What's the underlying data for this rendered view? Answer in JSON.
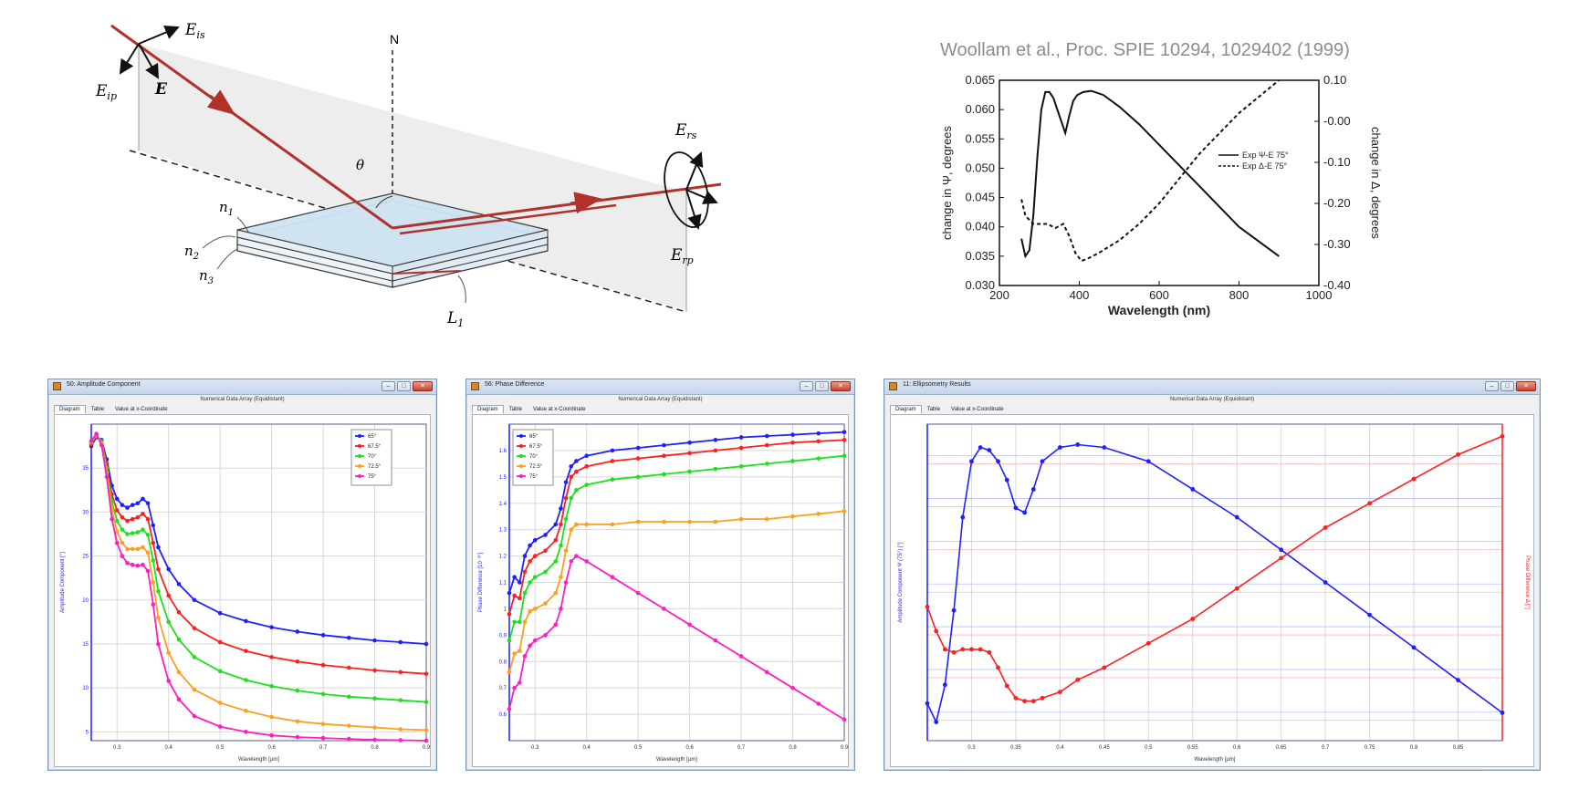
{
  "diagram": {
    "labels": {
      "normal": "N",
      "angle": "θ",
      "E_is": "E",
      "E_is_sub": "is",
      "E_ip": "E",
      "E_ip_sub": "ip",
      "E": "E",
      "E_rs": "E",
      "E_rs_sub": "rs",
      "E_rp": "E",
      "E_rp_sub": "rp",
      "n1": "n",
      "n1_sub": "1",
      "n2": "n",
      "n2_sub": "2",
      "n3": "n",
      "n3_sub": "3",
      "L1": "L",
      "L1_sub": "1"
    },
    "colors": {
      "beam": "#c0392b",
      "slab": "#cfe3f1"
    }
  },
  "reference_chart": {
    "citation": "Woollam et al., Proc. SPIE 10294, 1029402 (1999)",
    "chart_data": {
      "type": "line",
      "xlabel": "Wavelength (nm)",
      "ylabel_left": "change in Ψ, degrees",
      "ylabel_right": "change in Δ, degrees",
      "xlim": [
        200,
        1000
      ],
      "ylim_left": [
        0.03,
        0.065
      ],
      "ylim_right": [
        -0.4,
        0.1
      ],
      "x_ticks": [
        "200",
        "400",
        "600",
        "800",
        "1000"
      ],
      "y_left_ticks": [
        "0.030",
        "0.035",
        "0.040",
        "0.045",
        "0.050",
        "0.055",
        "0.060",
        "0.065"
      ],
      "y_right_ticks": [
        "-0.40",
        "-0.30",
        "-0.20",
        "-0.10",
        "-0.00",
        "0.10"
      ],
      "legend": [
        "Exp Ψ-E 75°",
        "Exp Δ-E 75°"
      ],
      "legend_position": "center-right",
      "series": [
        {
          "name": "Exp Ψ-E 75°",
          "axis": "left",
          "style": "solid",
          "x": [
            255,
            265,
            275,
            285,
            295,
            305,
            315,
            325,
            335,
            345,
            355,
            365,
            375,
            385,
            395,
            410,
            430,
            460,
            500,
            550,
            600,
            650,
            700,
            750,
            800,
            850,
            900
          ],
          "y": [
            0.038,
            0.035,
            0.036,
            0.042,
            0.052,
            0.06,
            0.063,
            0.063,
            0.062,
            0.06,
            0.058,
            0.056,
            0.059,
            0.0615,
            0.0625,
            0.063,
            0.0632,
            0.0625,
            0.0605,
            0.0575,
            0.054,
            0.0505,
            0.047,
            0.0435,
            0.04,
            0.0375,
            0.035
          ]
        },
        {
          "name": "Exp Δ-E 75°",
          "axis": "right",
          "style": "dashed",
          "x": [
            255,
            265,
            275,
            285,
            300,
            320,
            340,
            360,
            375,
            390,
            405,
            420,
            450,
            500,
            550,
            600,
            650,
            700,
            750,
            800,
            850,
            900
          ],
          "y": [
            -0.19,
            -0.23,
            -0.24,
            -0.25,
            -0.25,
            -0.25,
            -0.26,
            -0.25,
            -0.28,
            -0.32,
            -0.34,
            -0.335,
            -0.32,
            -0.29,
            -0.25,
            -0.2,
            -0.14,
            -0.08,
            -0.03,
            0.02,
            0.06,
            0.1
          ]
        }
      ]
    }
  },
  "windows": [
    {
      "title": "50: Amplitude Component",
      "subtitle": "Numerical Data Array (Equidistant)",
      "tabs": [
        "Diagram",
        "Table",
        "Value at x-Coordinate"
      ],
      "chart_data": {
        "type": "line",
        "xlabel": "Wavelength [µm]",
        "ylabel": "Amplitude Component [°]",
        "xlim": [
          0.25,
          0.9
        ],
        "x_ticks": [
          "0.3",
          "0.4",
          "0.5",
          "0.6",
          "0.7",
          "0.8",
          "0.9"
        ],
        "ylim": [
          4,
          40
        ],
        "y_ticks": [
          "5",
          "10",
          "15",
          "20",
          "25",
          "30",
          "35"
        ],
        "legend_position": "top-right",
        "series": [
          {
            "name": "65°",
            "color": "#1f1fff",
            "x": [
              0.25,
              0.26,
              0.27,
              0.28,
              0.29,
              0.3,
              0.31,
              0.32,
              0.33,
              0.34,
              0.35,
              0.36,
              0.37,
              0.38,
              0.4,
              0.42,
              0.45,
              0.5,
              0.55,
              0.6,
              0.65,
              0.7,
              0.75,
              0.8,
              0.85,
              0.9
            ],
            "y": [
              37.5,
              38.5,
              38.2,
              36.0,
              33.0,
              31.5,
              30.8,
              30.5,
              30.8,
              31.0,
              31.5,
              31.0,
              28.5,
              26.0,
              23.5,
              21.8,
              20.0,
              18.5,
              17.6,
              16.9,
              16.4,
              16.0,
              15.7,
              15.4,
              15.2,
              15.0
            ]
          },
          {
            "name": "67.5°",
            "color": "#ff1f1f",
            "x": [
              0.25,
              0.26,
              0.27,
              0.28,
              0.29,
              0.3,
              0.31,
              0.32,
              0.33,
              0.34,
              0.35,
              0.36,
              0.37,
              0.38,
              0.4,
              0.42,
              0.45,
              0.5,
              0.55,
              0.6,
              0.65,
              0.7,
              0.75,
              0.8,
              0.85,
              0.9
            ],
            "y": [
              37.7,
              38.6,
              38.1,
              35.5,
              32.0,
              30.2,
              29.4,
              29.0,
              29.2,
              29.4,
              29.8,
              29.2,
              26.5,
              23.5,
              20.5,
              18.6,
              16.8,
              15.2,
              14.2,
              13.5,
              13.0,
              12.6,
              12.3,
              12.0,
              11.8,
              11.6
            ]
          },
          {
            "name": "70°",
            "color": "#1fdf1f",
            "x": [
              0.25,
              0.26,
              0.27,
              0.28,
              0.29,
              0.3,
              0.31,
              0.32,
              0.33,
              0.34,
              0.35,
              0.36,
              0.37,
              0.38,
              0.4,
              0.42,
              0.45,
              0.5,
              0.55,
              0.6,
              0.65,
              0.7,
              0.75,
              0.8,
              0.85,
              0.9
            ],
            "y": [
              37.9,
              38.7,
              38.0,
              35.0,
              31.2,
              29.0,
              28.0,
              27.5,
              27.6,
              27.7,
              28.0,
              27.4,
              24.5,
              21.0,
              17.5,
              15.5,
              13.5,
              11.9,
              10.9,
              10.2,
              9.7,
              9.3,
              9.0,
              8.8,
              8.6,
              8.4
            ]
          },
          {
            "name": "72.5°",
            "color": "#ff9f1f",
            "x": [
              0.25,
              0.26,
              0.27,
              0.28,
              0.29,
              0.3,
              0.31,
              0.32,
              0.33,
              0.34,
              0.35,
              0.36,
              0.37,
              0.38,
              0.4,
              0.42,
              0.45,
              0.5,
              0.55,
              0.6,
              0.65,
              0.7,
              0.75,
              0.8,
              0.85,
              0.9
            ],
            "y": [
              38.0,
              38.8,
              37.8,
              34.5,
              30.2,
              27.8,
              26.5,
              25.8,
              25.8,
              25.8,
              26.0,
              25.4,
              22.0,
              18.0,
              14.0,
              11.8,
              9.8,
              8.3,
              7.4,
              6.7,
              6.2,
              5.9,
              5.7,
              5.5,
              5.3,
              5.2
            ]
          },
          {
            "name": "75°",
            "color": "#ff1fbf",
            "x": [
              0.25,
              0.26,
              0.27,
              0.28,
              0.29,
              0.3,
              0.31,
              0.32,
              0.33,
              0.34,
              0.35,
              0.36,
              0.37,
              0.38,
              0.4,
              0.42,
              0.45,
              0.5,
              0.55,
              0.6,
              0.65,
              0.7,
              0.75,
              0.8,
              0.85,
              0.9
            ],
            "y": [
              38.1,
              38.9,
              37.6,
              34.0,
              29.2,
              26.5,
              25.0,
              24.2,
              24.0,
              23.9,
              24.0,
              23.3,
              19.5,
              15.0,
              10.8,
              8.7,
              6.8,
              5.6,
              5.0,
              4.6,
              4.4,
              4.3,
              4.2,
              4.1,
              4.05,
              4.0
            ]
          }
        ]
      }
    },
    {
      "title": "56: Phase Difference",
      "subtitle": "Numerical Data Array (Equidistant)",
      "tabs": [
        "Diagram",
        "Table",
        "Value at x-Coordinate"
      ],
      "chart_data": {
        "type": "line",
        "xlabel": "Wavelength [µm]",
        "ylabel": "Phase Difference [10⁻³°]",
        "xlim": [
          0.25,
          0.9
        ],
        "x_ticks": [
          "0.3",
          "0.4",
          "0.5",
          "0.6",
          "0.7",
          "0.8",
          "0.9"
        ],
        "ylim": [
          0.5,
          1.7
        ],
        "y_ticks": [
          "0.6",
          "0.7",
          "0.8",
          "0.9",
          "1",
          "1.1",
          "1.2",
          "1.3",
          "1.4",
          "1.5",
          "1.6"
        ],
        "legend_position": "top-left",
        "series": [
          {
            "name": "65°",
            "color": "#1f1fff",
            "x": [
              0.25,
              0.26,
              0.27,
              0.28,
              0.29,
              0.3,
              0.32,
              0.34,
              0.35,
              0.36,
              0.37,
              0.38,
              0.4,
              0.45,
              0.5,
              0.55,
              0.6,
              0.65,
              0.7,
              0.75,
              0.8,
              0.85,
              0.9
            ],
            "y": [
              1.06,
              1.12,
              1.1,
              1.2,
              1.24,
              1.26,
              1.28,
              1.32,
              1.38,
              1.48,
              1.54,
              1.56,
              1.58,
              1.6,
              1.61,
              1.62,
              1.63,
              1.64,
              1.65,
              1.655,
              1.66,
              1.665,
              1.67
            ]
          },
          {
            "name": "67.5°",
            "color": "#ff1f1f",
            "x": [
              0.25,
              0.26,
              0.27,
              0.28,
              0.29,
              0.3,
              0.32,
              0.34,
              0.35,
              0.36,
              0.37,
              0.38,
              0.4,
              0.45,
              0.5,
              0.55,
              0.6,
              0.65,
              0.7,
              0.75,
              0.8,
              0.85,
              0.9
            ],
            "y": [
              0.98,
              1.05,
              1.04,
              1.14,
              1.18,
              1.2,
              1.22,
              1.26,
              1.32,
              1.42,
              1.5,
              1.52,
              1.54,
              1.56,
              1.57,
              1.58,
              1.59,
              1.6,
              1.61,
              1.62,
              1.63,
              1.635,
              1.64
            ]
          },
          {
            "name": "70°",
            "color": "#1fdf1f",
            "x": [
              0.25,
              0.26,
              0.27,
              0.28,
              0.29,
              0.3,
              0.32,
              0.34,
              0.35,
              0.36,
              0.37,
              0.38,
              0.4,
              0.45,
              0.5,
              0.55,
              0.6,
              0.65,
              0.7,
              0.75,
              0.8,
              0.85,
              0.9
            ],
            "y": [
              0.88,
              0.95,
              0.95,
              1.06,
              1.1,
              1.12,
              1.14,
              1.18,
              1.24,
              1.34,
              1.42,
              1.45,
              1.47,
              1.49,
              1.5,
              1.51,
              1.52,
              1.53,
              1.54,
              1.55,
              1.56,
              1.57,
              1.58
            ]
          },
          {
            "name": "72.5°",
            "color": "#ff9f1f",
            "x": [
              0.25,
              0.26,
              0.27,
              0.28,
              0.29,
              0.3,
              0.32,
              0.34,
              0.35,
              0.36,
              0.37,
              0.38,
              0.4,
              0.45,
              0.5,
              0.55,
              0.6,
              0.65,
              0.7,
              0.75,
              0.8,
              0.85,
              0.9
            ],
            "y": [
              0.76,
              0.83,
              0.84,
              0.95,
              0.99,
              1.0,
              1.02,
              1.06,
              1.12,
              1.22,
              1.3,
              1.32,
              1.32,
              1.32,
              1.33,
              1.33,
              1.33,
              1.33,
              1.34,
              1.34,
              1.35,
              1.36,
              1.37
            ]
          },
          {
            "name": "75°",
            "color": "#ff1fbf",
            "x": [
              0.25,
              0.26,
              0.27,
              0.28,
              0.29,
              0.3,
              0.32,
              0.34,
              0.35,
              0.36,
              0.37,
              0.38,
              0.4,
              0.45,
              0.5,
              0.55,
              0.6,
              0.65,
              0.7,
              0.75,
              0.8,
              0.85,
              0.9
            ],
            "y": [
              0.62,
              0.7,
              0.72,
              0.82,
              0.86,
              0.88,
              0.9,
              0.94,
              1.0,
              1.1,
              1.18,
              1.2,
              1.18,
              1.12,
              1.06,
              1.0,
              0.94,
              0.88,
              0.82,
              0.76,
              0.7,
              0.64,
              0.58
            ]
          }
        ]
      }
    },
    {
      "title": "11: Ellipsometry Results",
      "subtitle": "Numerical Data Array (Equidistant)",
      "tabs": [
        "Diagram",
        "Table",
        "Value at x-Coordinate"
      ],
      "chart_data": {
        "type": "line",
        "xlabel": "Wavelength [µm]",
        "ylabel_left": "Amplitude Component Ψ (75°) [°]",
        "ylabel_right": "Phase Difference Δ [°]",
        "xlim": [
          0.25,
          0.9
        ],
        "x_ticks": [
          "0.3",
          "0.35",
          "0.4",
          "0.45",
          "0.5",
          "0.55",
          "0.6",
          "0.65",
          "0.7",
          "0.75",
          "0.8",
          "0.85"
        ],
        "series": [
          {
            "name": "Ψ",
            "color": "#1f1fff",
            "axis": "left",
            "x": [
              0.25,
              0.26,
              0.27,
              0.28,
              0.29,
              0.3,
              0.31,
              0.32,
              0.33,
              0.34,
              0.35,
              0.36,
              0.37,
              0.38,
              0.4,
              0.42,
              0.45,
              0.5,
              0.55,
              0.6,
              0.65,
              0.7,
              0.75,
              0.8,
              0.85,
              0.9
            ],
            "y": [
              0.036,
              0.034,
              0.038,
              0.046,
              0.056,
              0.062,
              0.0635,
              0.0632,
              0.062,
              0.06,
              0.057,
              0.0565,
              0.059,
              0.062,
              0.0635,
              0.0638,
              0.0635,
              0.062,
              0.059,
              0.056,
              0.0525,
              0.049,
              0.0455,
              0.042,
              0.0385,
              0.035
            ]
          },
          {
            "name": "Δ",
            "color": "#ff1f1f",
            "axis": "right",
            "x": [
              0.25,
              0.26,
              0.27,
              0.28,
              0.29,
              0.3,
              0.31,
              0.32,
              0.33,
              0.34,
              0.35,
              0.36,
              0.37,
              0.38,
              0.4,
              0.42,
              0.45,
              0.5,
              0.55,
              0.6,
              0.65,
              0.7,
              0.75,
              0.8,
              0.85,
              0.9
            ],
            "y": [
              -0.18,
              -0.22,
              -0.25,
              -0.255,
              -0.25,
              -0.25,
              -0.25,
              -0.255,
              -0.28,
              -0.31,
              -0.33,
              -0.335,
              -0.335,
              -0.33,
              -0.32,
              -0.3,
              -0.28,
              -0.24,
              -0.2,
              -0.15,
              -0.1,
              -0.05,
              -0.01,
              0.03,
              0.07,
              0.1
            ]
          }
        ]
      }
    }
  ]
}
